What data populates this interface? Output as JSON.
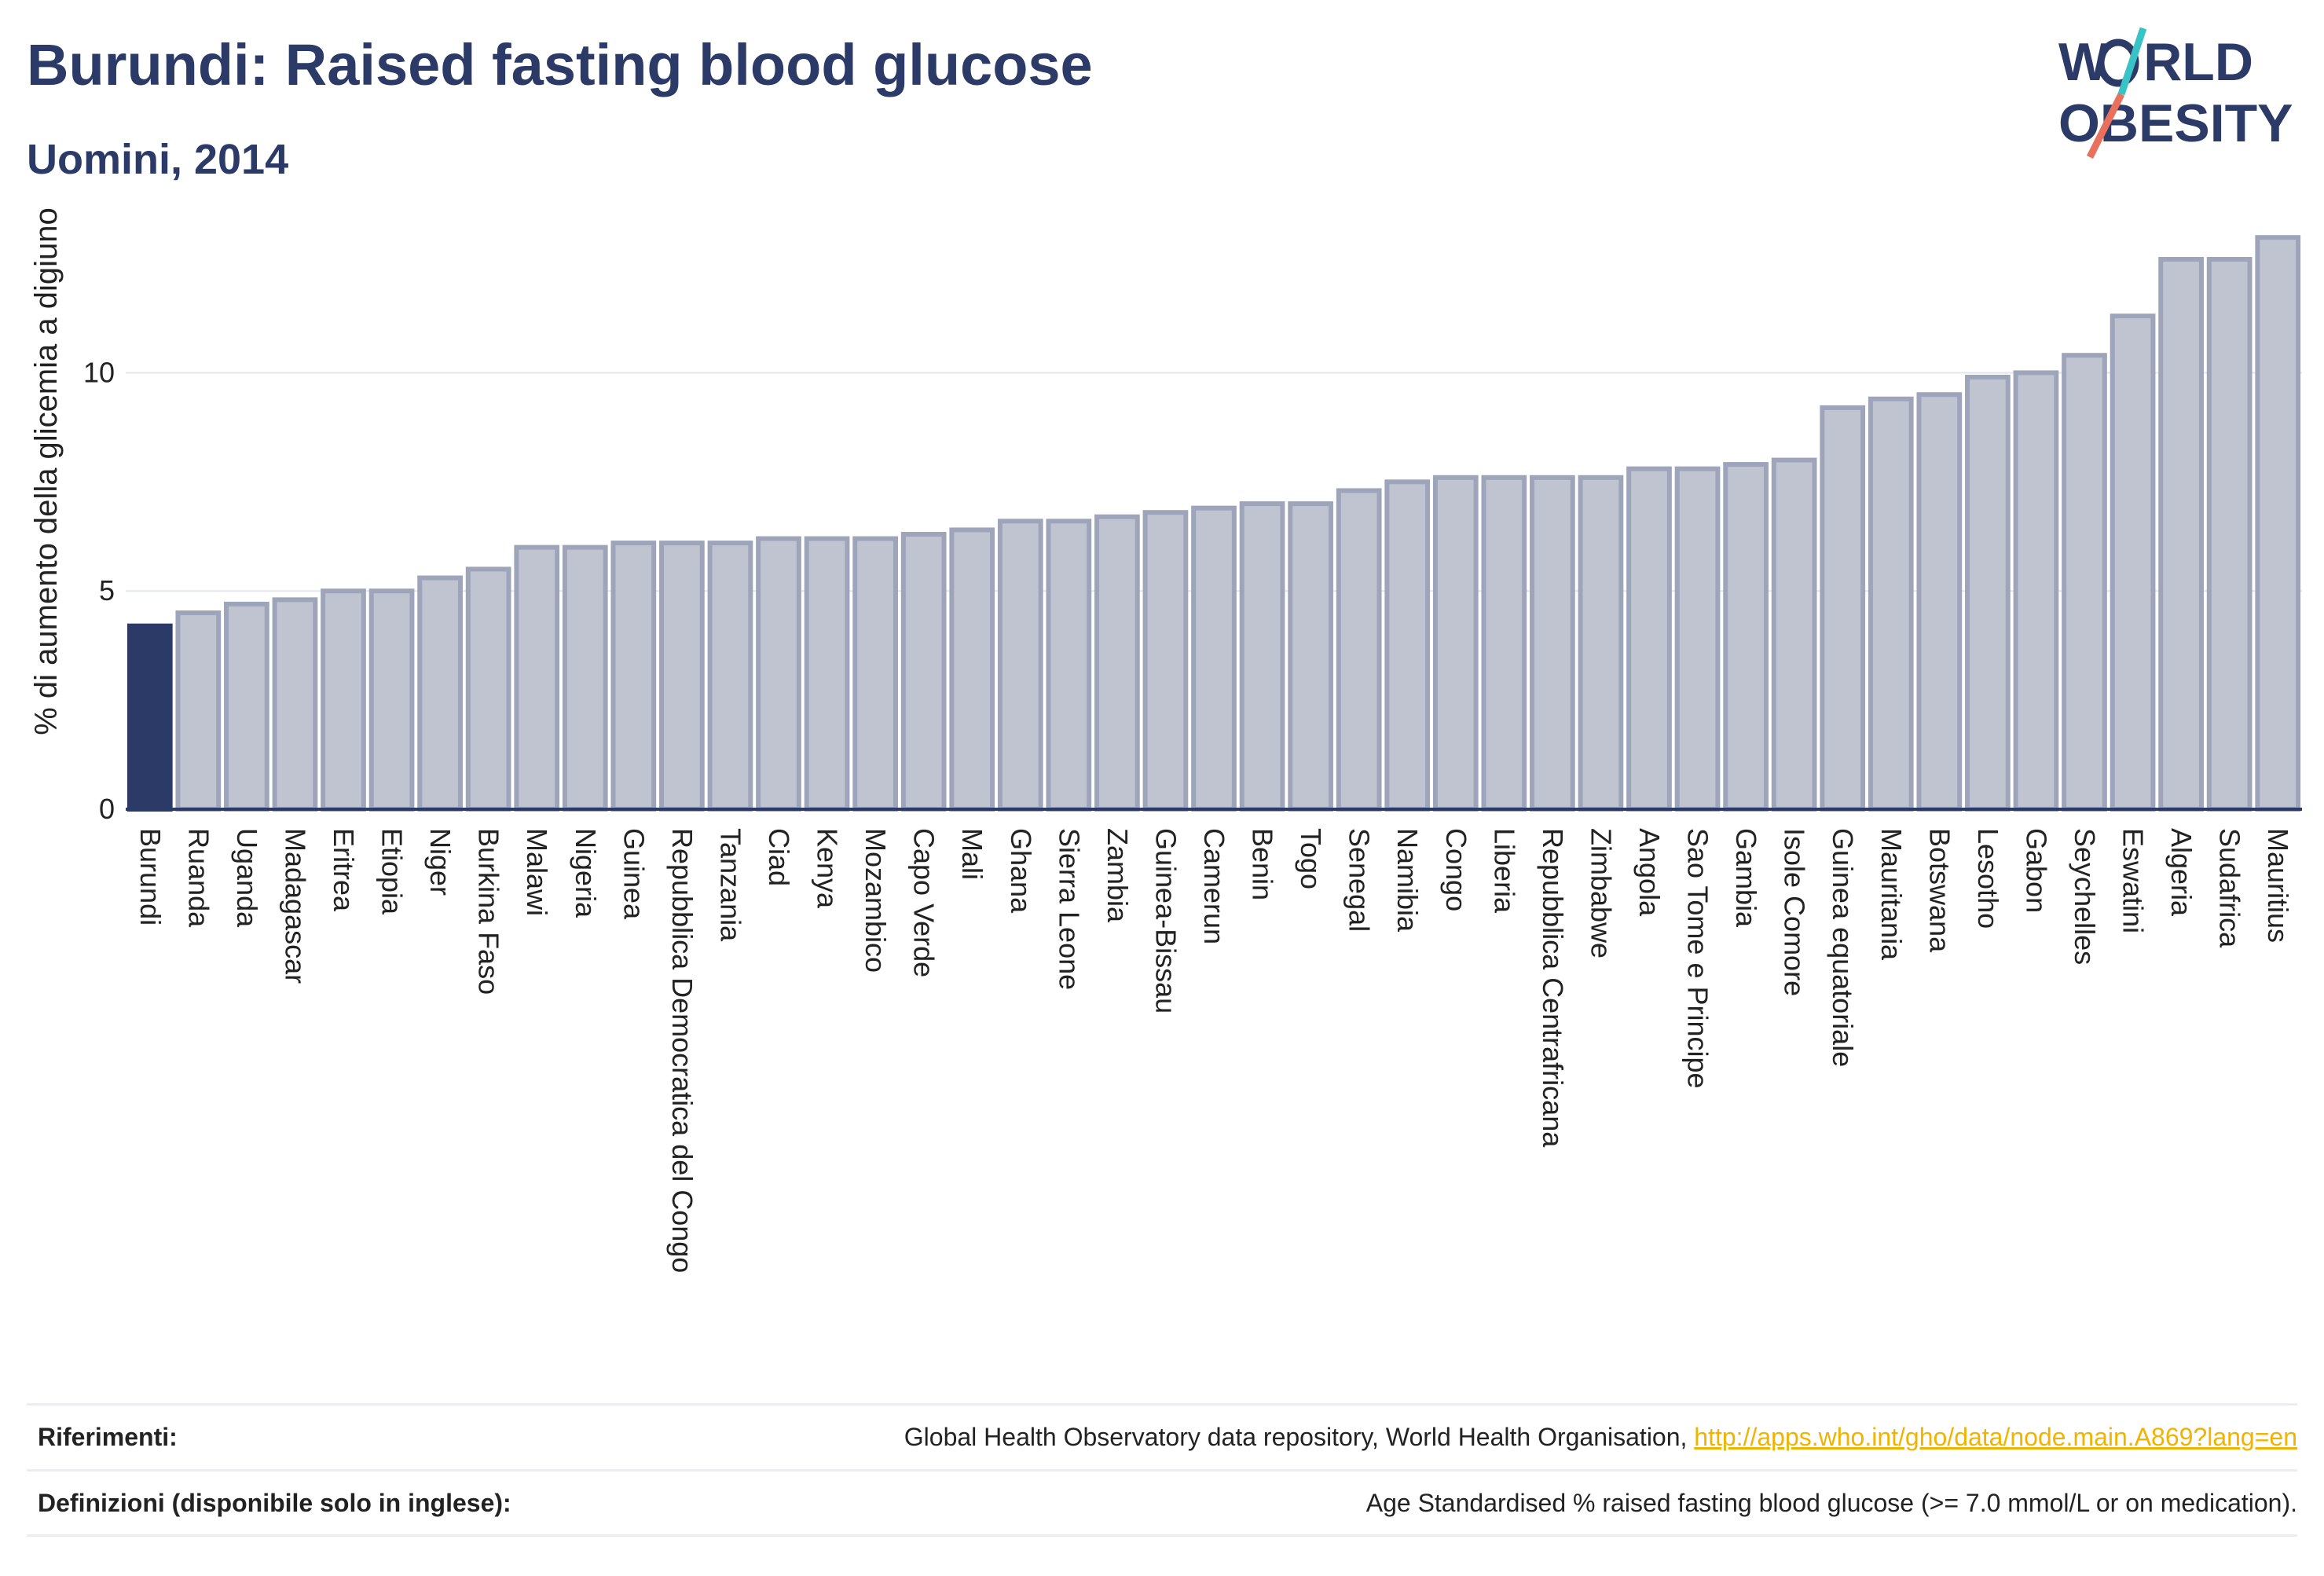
{
  "header": {
    "title": "Burundi: Raised fasting blood glucose",
    "subtitle": "Uomini, 2014"
  },
  "logo": {
    "line1": "W",
    "line1b": "RLD",
    "line2": "OBESITY",
    "colors": [
      "#2b3a67",
      "#e8705d",
      "#38c3c6"
    ]
  },
  "colors": {
    "highlight": "#2b3a67",
    "bar_fill": "#c0c4d1",
    "bar_stroke": "#9ea4ba",
    "axis": "#2b3a67",
    "grid": "#e3e5ec"
  },
  "chart_data": {
    "type": "bar",
    "ylabel": "% di aumento della glicemia a digiuno",
    "xlabel": "",
    "ylim": [
      0,
      13.5
    ],
    "yticks": [
      0,
      5,
      10
    ],
    "grid": true,
    "highlight": "Burundi",
    "categories": [
      "Burundi",
      "Ruanda",
      "Uganda",
      "Madagascar",
      "Eritrea",
      "Etiopia",
      "Niger",
      "Burkina Faso",
      "Malawi",
      "Nigeria",
      "Guinea",
      "Repubblica Democratica del Congo",
      "Tanzania",
      "Ciad",
      "Kenya",
      "Mozambico",
      "Capo Verde",
      "Mali",
      "Ghana",
      "Sierra Leone",
      "Zambia",
      "Guinea-Bissau",
      "Camerun",
      "Benin",
      "Togo",
      "Senegal",
      "Namibia",
      "Congo",
      "Liberia",
      "Repubblica Centrafricana",
      "Zimbabwe",
      "Angola",
      "Sao Tome e Principe",
      "Gambia",
      "Isole Comore",
      "Guinea equatoriale",
      "Mauritania",
      "Botswana",
      "Lesotho",
      "Gabon",
      "Seychelles",
      "Eswatini",
      "Algeria",
      "Sudafrica",
      "Mauritius"
    ],
    "values": [
      4.2,
      4.5,
      4.7,
      4.8,
      5.0,
      5.0,
      5.3,
      5.5,
      6.0,
      6.0,
      6.1,
      6.1,
      6.1,
      6.2,
      6.2,
      6.2,
      6.3,
      6.4,
      6.6,
      6.6,
      6.7,
      6.8,
      6.9,
      7.0,
      7.0,
      7.3,
      7.5,
      7.6,
      7.6,
      7.6,
      7.6,
      7.8,
      7.8,
      7.9,
      8.0,
      9.2,
      9.4,
      9.5,
      9.9,
      10.0,
      10.4,
      11.3,
      12.6,
      12.6,
      13.1
    ]
  },
  "footer": {
    "references_label": "Riferimenti:",
    "references_text": "Global Health Observatory data repository, World Health Organisation, ",
    "references_link": "http://apps.who.int/gho/data/node.main.A869?lang=en",
    "definitions_label": "Definizioni (disponibile solo in inglese):",
    "definitions_text": "Age Standardised % raised fasting blood glucose (>= 7.0 mmol/L or on medication)."
  }
}
